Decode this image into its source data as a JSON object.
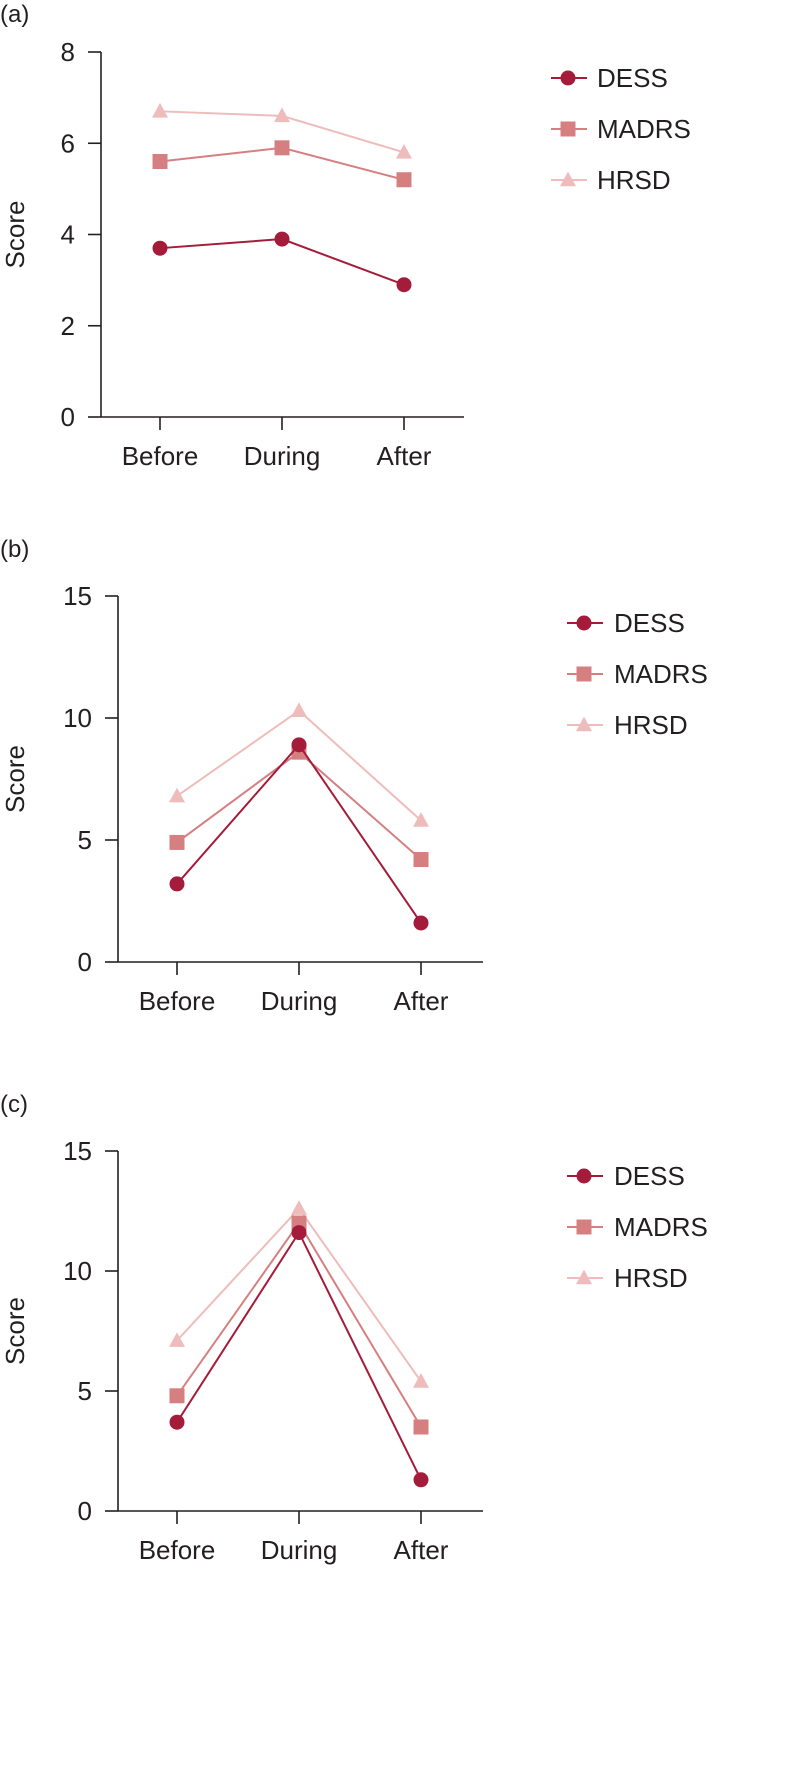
{
  "colors": {
    "DESS": "#a51c3a",
    "MADRS": "#d67f80",
    "HRSD": "#eebcbb",
    "axis": "#231f20"
  },
  "chart_data": [
    {
      "panel_label": "(a)",
      "type": "line",
      "categories": [
        "Before",
        "During",
        "After"
      ],
      "ylabel": "Score",
      "xlabel": "",
      "ylim": [
        0,
        8
      ],
      "yticks": [
        0,
        2,
        4,
        6,
        8
      ],
      "grid": false,
      "legend_position": "right",
      "series": [
        {
          "name": "DESS",
          "marker": "circle",
          "values": [
            3.7,
            3.9,
            2.9
          ]
        },
        {
          "name": "MADRS",
          "marker": "square",
          "values": [
            5.6,
            5.9,
            5.2
          ]
        },
        {
          "name": "HRSD",
          "marker": "triangle",
          "values": [
            6.7,
            6.6,
            5.8
          ]
        }
      ]
    },
    {
      "panel_label": "(b)",
      "type": "line",
      "categories": [
        "Before",
        "During",
        "After"
      ],
      "ylabel": "Score",
      "xlabel": "",
      "ylim": [
        0,
        15
      ],
      "yticks": [
        0,
        5,
        10,
        15
      ],
      "grid": false,
      "legend_position": "right",
      "series": [
        {
          "name": "DESS",
          "marker": "circle",
          "values": [
            3.2,
            8.9,
            1.6
          ]
        },
        {
          "name": "MADRS",
          "marker": "square",
          "values": [
            4.9,
            8.6,
            4.2
          ]
        },
        {
          "name": "HRSD",
          "marker": "triangle",
          "values": [
            6.8,
            10.3,
            5.8
          ]
        }
      ]
    },
    {
      "panel_label": "(c)",
      "type": "line",
      "categories": [
        "Before",
        "During",
        "After"
      ],
      "ylabel": "Score",
      "xlabel": "",
      "ylim": [
        0,
        15
      ],
      "yticks": [
        0,
        5,
        10,
        15
      ],
      "grid": false,
      "legend_position": "right",
      "series": [
        {
          "name": "DESS",
          "marker": "circle",
          "values": [
            3.7,
            11.6,
            1.3
          ]
        },
        {
          "name": "MADRS",
          "marker": "square",
          "values": [
            4.8,
            12.0,
            3.5
          ]
        },
        {
          "name": "HRSD",
          "marker": "triangle",
          "values": [
            7.1,
            12.6,
            5.4
          ]
        }
      ]
    }
  ]
}
